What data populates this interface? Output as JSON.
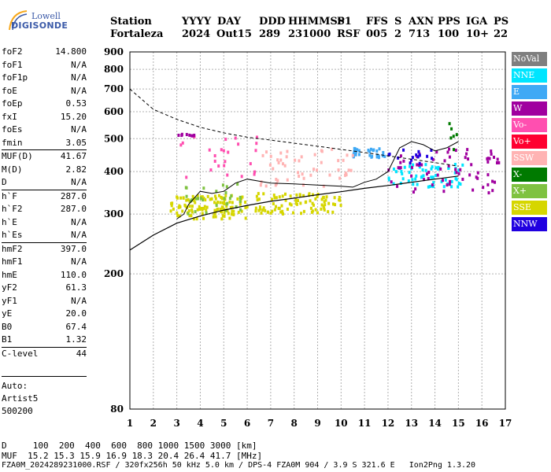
{
  "logo": {
    "top": "Lowell",
    "bottom": "DIGISONDE"
  },
  "header": {
    "labels": [
      "Station",
      "YYYY",
      "DAY",
      "DDD",
      "HHMMSS",
      "P1",
      "FFS",
      "S",
      "AXN",
      "PPS",
      "IGA",
      "PS"
    ],
    "values": [
      "Fortaleza",
      "2024",
      "Out15",
      "289",
      "231000",
      "RSF",
      "005",
      "2",
      "713",
      "100",
      "10+",
      "22"
    ]
  },
  "params": [
    {
      "label": "foF2",
      "value": "14.800"
    },
    {
      "label": "foF1",
      "value": "N/A"
    },
    {
      "label": "foF1p",
      "value": "N/A"
    },
    {
      "label": "foE",
      "value": "N/A"
    },
    {
      "label": "foEp",
      "value": "0.53"
    },
    {
      "label": "fxI",
      "value": "15.20"
    },
    {
      "label": "foEs",
      "value": "N/A"
    },
    {
      "label": "fmin",
      "value": "3.05"
    },
    {
      "label": "MUF(D)",
      "value": "41.67",
      "sep": true
    },
    {
      "label": "M(D)",
      "value": "2.82"
    },
    {
      "label": "D",
      "value": "N/A"
    },
    {
      "label": "h`F",
      "value": "287.0",
      "sep": true
    },
    {
      "label": "h`F2",
      "value": "287.0"
    },
    {
      "label": "h`E",
      "value": "N/A"
    },
    {
      "label": "h`Es",
      "value": "N/A"
    },
    {
      "label": "hmF2",
      "value": "397.0",
      "sep": true
    },
    {
      "label": "hmF1",
      "value": "N/A"
    },
    {
      "label": "hmE",
      "value": "110.0"
    },
    {
      "label": "yF2",
      "value": "61.3"
    },
    {
      "label": "yF1",
      "value": "N/A"
    },
    {
      "label": "yE",
      "value": "20.0"
    },
    {
      "label": "B0",
      "value": "67.4"
    },
    {
      "label": "B1",
      "value": "1.32"
    },
    {
      "label": "C-level",
      "value": "44",
      "sep": true
    }
  ],
  "auto": [
    "Auto:",
    "Artist5",
    "500200"
  ],
  "legend": [
    {
      "label": "NoVal",
      "color": "#7f7f7f"
    },
    {
      "label": "NNE",
      "color": "#00e5ff"
    },
    {
      "label": "E",
      "color": "#3fa9f5"
    },
    {
      "label": "W",
      "color": "#a0009f"
    },
    {
      "label": "Vo-",
      "color": "#ff4fb0"
    },
    {
      "label": "Vo+",
      "color": "#ff0030"
    },
    {
      "label": "SSW",
      "color": "#ffb3b3"
    },
    {
      "label": "X-",
      "color": "#007a00"
    },
    {
      "label": "X+",
      "color": "#7fc241"
    },
    {
      "label": "SSE",
      "color": "#d6d600"
    },
    {
      "label": "NNW",
      "color": "#2000e0"
    }
  ],
  "footer": {
    "d_row": "D     100  200  400  600  800 1000 1500 3000 [km]",
    "muf_row": "MUF  15.2 15.3 15.9 16.9 18.3 20.4 26.4 41.7 [MHz]",
    "file_row": "FZA0M_2024289231000.RSF / 320fx256h 50 kHz 5.0 km / DPS-4 FZA0M 904 / 3.9 S 321.6 E   Ion2Png 1.3.20"
  },
  "chart_data": {
    "type": "scatter",
    "xlim": [
      1,
      17
    ],
    "ylim": [
      80,
      900
    ],
    "x_ticks": [
      1,
      2,
      3,
      4,
      5,
      6,
      7,
      8,
      9,
      10,
      11,
      12,
      13,
      14,
      15,
      16,
      17
    ],
    "y_ticks": [
      80,
      200,
      300,
      400,
      500,
      600,
      700,
      800,
      900
    ],
    "y_scale": "log",
    "grid": true,
    "trace_clusters": [
      {
        "name": "SSE",
        "color": "#d6d600",
        "x_range": [
          2.7,
          6.0
        ],
        "y_range": [
          290,
          340
        ],
        "count": 120
      },
      {
        "name": "SSE",
        "color": "#d6d600",
        "x_range": [
          6.3,
          10.0
        ],
        "y_range": [
          300,
          345
        ],
        "count": 90
      },
      {
        "name": "X+",
        "color": "#7fc241",
        "x_range": [
          3.0,
          5.8
        ],
        "y_range": [
          300,
          370
        ],
        "count": 30
      },
      {
        "name": "NNE",
        "color": "#00e5ff",
        "x_range": [
          12.0,
          15.2
        ],
        "y_range": [
          360,
          420
        ],
        "count": 60
      },
      {
        "name": "W",
        "color": "#a0009f",
        "x_range": [
          12.0,
          16.8
        ],
        "y_range": [
          345,
          470
        ],
        "count": 70
      },
      {
        "name": "E",
        "color": "#3fa9f5",
        "x_range": [
          10.5,
          12.0
        ],
        "y_range": [
          440,
          470
        ],
        "count": 30
      },
      {
        "name": "SSW",
        "color": "#ffb3b3",
        "x_range": [
          6.5,
          10.5
        ],
        "y_range": [
          360,
          470
        ],
        "count": 50
      },
      {
        "name": "Vo-",
        "color": "#ff4fb0",
        "x_range": [
          3.0,
          6.5
        ],
        "y_range": [
          380,
          510
        ],
        "count": 25
      },
      {
        "name": "W",
        "color": "#a0009f",
        "x_range": [
          3.0,
          4.0
        ],
        "y_range": [
          505,
          515
        ],
        "count": 8
      },
      {
        "name": "NNW",
        "color": "#2000e0",
        "x_range": [
          12.0,
          14.0
        ],
        "y_range": [
          420,
          470
        ],
        "count": 15
      },
      {
        "name": "X-",
        "color": "#007a00",
        "x_range": [
          14.5,
          15.0
        ],
        "y_range": [
          440,
          560
        ],
        "count": 6
      }
    ],
    "dashed_curve": {
      "x": [
        1,
        2,
        3,
        4,
        5,
        6,
        7,
        8,
        9,
        10,
        11,
        12,
        13,
        14,
        15
      ],
      "y": [
        700,
        610,
        570,
        540,
        520,
        505,
        495,
        485,
        475,
        465,
        455,
        445,
        435,
        425,
        415
      ]
    },
    "dashed_lower": {
      "x": [
        1,
        2,
        3,
        4,
        5,
        6,
        7,
        8,
        9,
        10,
        11,
        12,
        13,
        14,
        15
      ],
      "y": [
        235,
        260,
        282,
        296,
        308,
        318,
        327,
        334,
        342,
        349,
        357,
        364,
        372,
        380,
        388
      ]
    },
    "profile_line": {
      "x": [
        3.0,
        3.3,
        3.5,
        4.0,
        4.5,
        5.0,
        5.5,
        6.0,
        6.5,
        7.0,
        8.0,
        9.0,
        10.0,
        10.5,
        11.0,
        11.5,
        12.0,
        12.5,
        13.0,
        13.5,
        14.0,
        14.5,
        15.0
      ],
      "y": [
        290,
        300,
        320,
        350,
        345,
        350,
        370,
        380,
        375,
        370,
        368,
        365,
        362,
        360,
        372,
        380,
        400,
        470,
        490,
        480,
        460,
        470,
        490
      ]
    }
  }
}
